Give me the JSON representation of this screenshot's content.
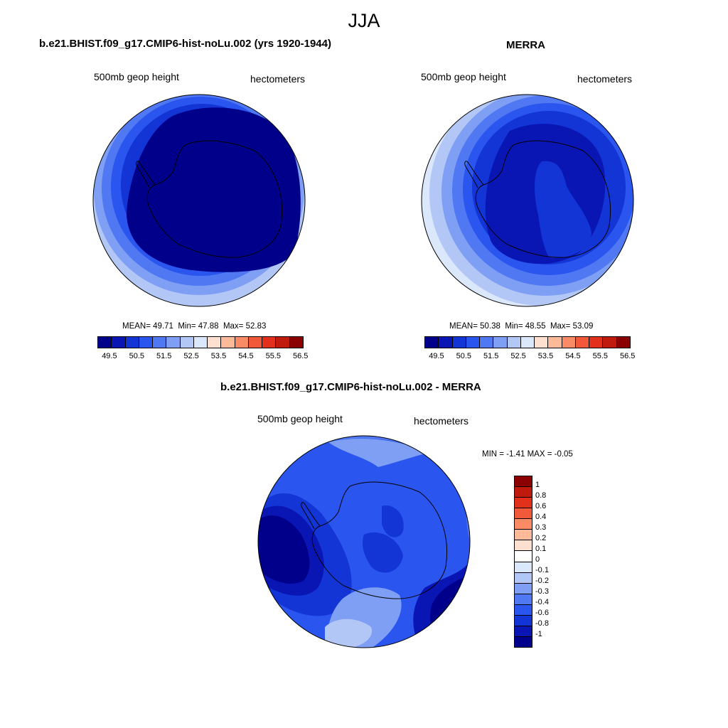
{
  "title": "JJA",
  "panel1": {
    "title": "b.e21.BHIST.f09_g17.CMIP6-hist-noLu.002 (yrs 1920-1944)",
    "variable": "500mb geop height",
    "units": "hectometers",
    "mean_label": "MEAN=",
    "mean": "49.71",
    "min_label": "Min=",
    "min": "47.88",
    "max_label": "Max=",
    "max": "52.83"
  },
  "panel2": {
    "title": "MERRA",
    "variable": "500mb geop height",
    "units": "hectometers",
    "mean_label": "MEAN=",
    "mean": "50.38",
    "min_label": "Min=",
    "min": "48.55",
    "max_label": "Max=",
    "max": "53.09"
  },
  "panel3": {
    "title": "b.e21.BHIST.f09_g17.CMIP6-hist-noLu.002 - MERRA",
    "variable": "500mb geop height",
    "units": "hectometers",
    "minmax_text": "MIN =  -1.41 MAX =  -0.05"
  },
  "colorbar_abs": {
    "labels": [
      "49.5",
      "50.5",
      "51.5",
      "52.5",
      "53.5",
      "54.5",
      "55.5",
      "56.5"
    ],
    "colors": [
      "#00008b",
      "#0a16b4",
      "#1335d6",
      "#2a55ee",
      "#4f78f2",
      "#7f9ff4",
      "#b3c7f7",
      "#dbe7fb",
      "#fde0cf",
      "#fcba99",
      "#f98c66",
      "#f2583a",
      "#e2301d",
      "#c01a0e",
      "#8b0000"
    ]
  },
  "colorbar_diff": {
    "labels": [
      "1",
      "0.8",
      "0.6",
      "0.4",
      "0.3",
      "0.2",
      "0.1",
      "0",
      "-0.1",
      "-0.2",
      "-0.3",
      "-0.4",
      "-0.6",
      "-0.8",
      "-1"
    ],
    "colors": [
      "#8b0000",
      "#c01a0e",
      "#e2301d",
      "#f2583a",
      "#f98c66",
      "#fcba99",
      "#fde0cf",
      "#ffffff",
      "#dbe7fb",
      "#b3c7f7",
      "#7f9ff4",
      "#4f78f2",
      "#2a55ee",
      "#1335d6",
      "#0a16b4",
      "#00008b"
    ]
  },
  "colors": {
    "c_darkest": "#00008b",
    "c_dark": "#0a16b4",
    "c_mid": "#1335d6",
    "c_bright": "#2a55ee",
    "c_light1": "#4f78f2",
    "c_light2": "#7f9ff4",
    "c_light3": "#b3c7f7",
    "c_palest": "#dbe7fb"
  }
}
